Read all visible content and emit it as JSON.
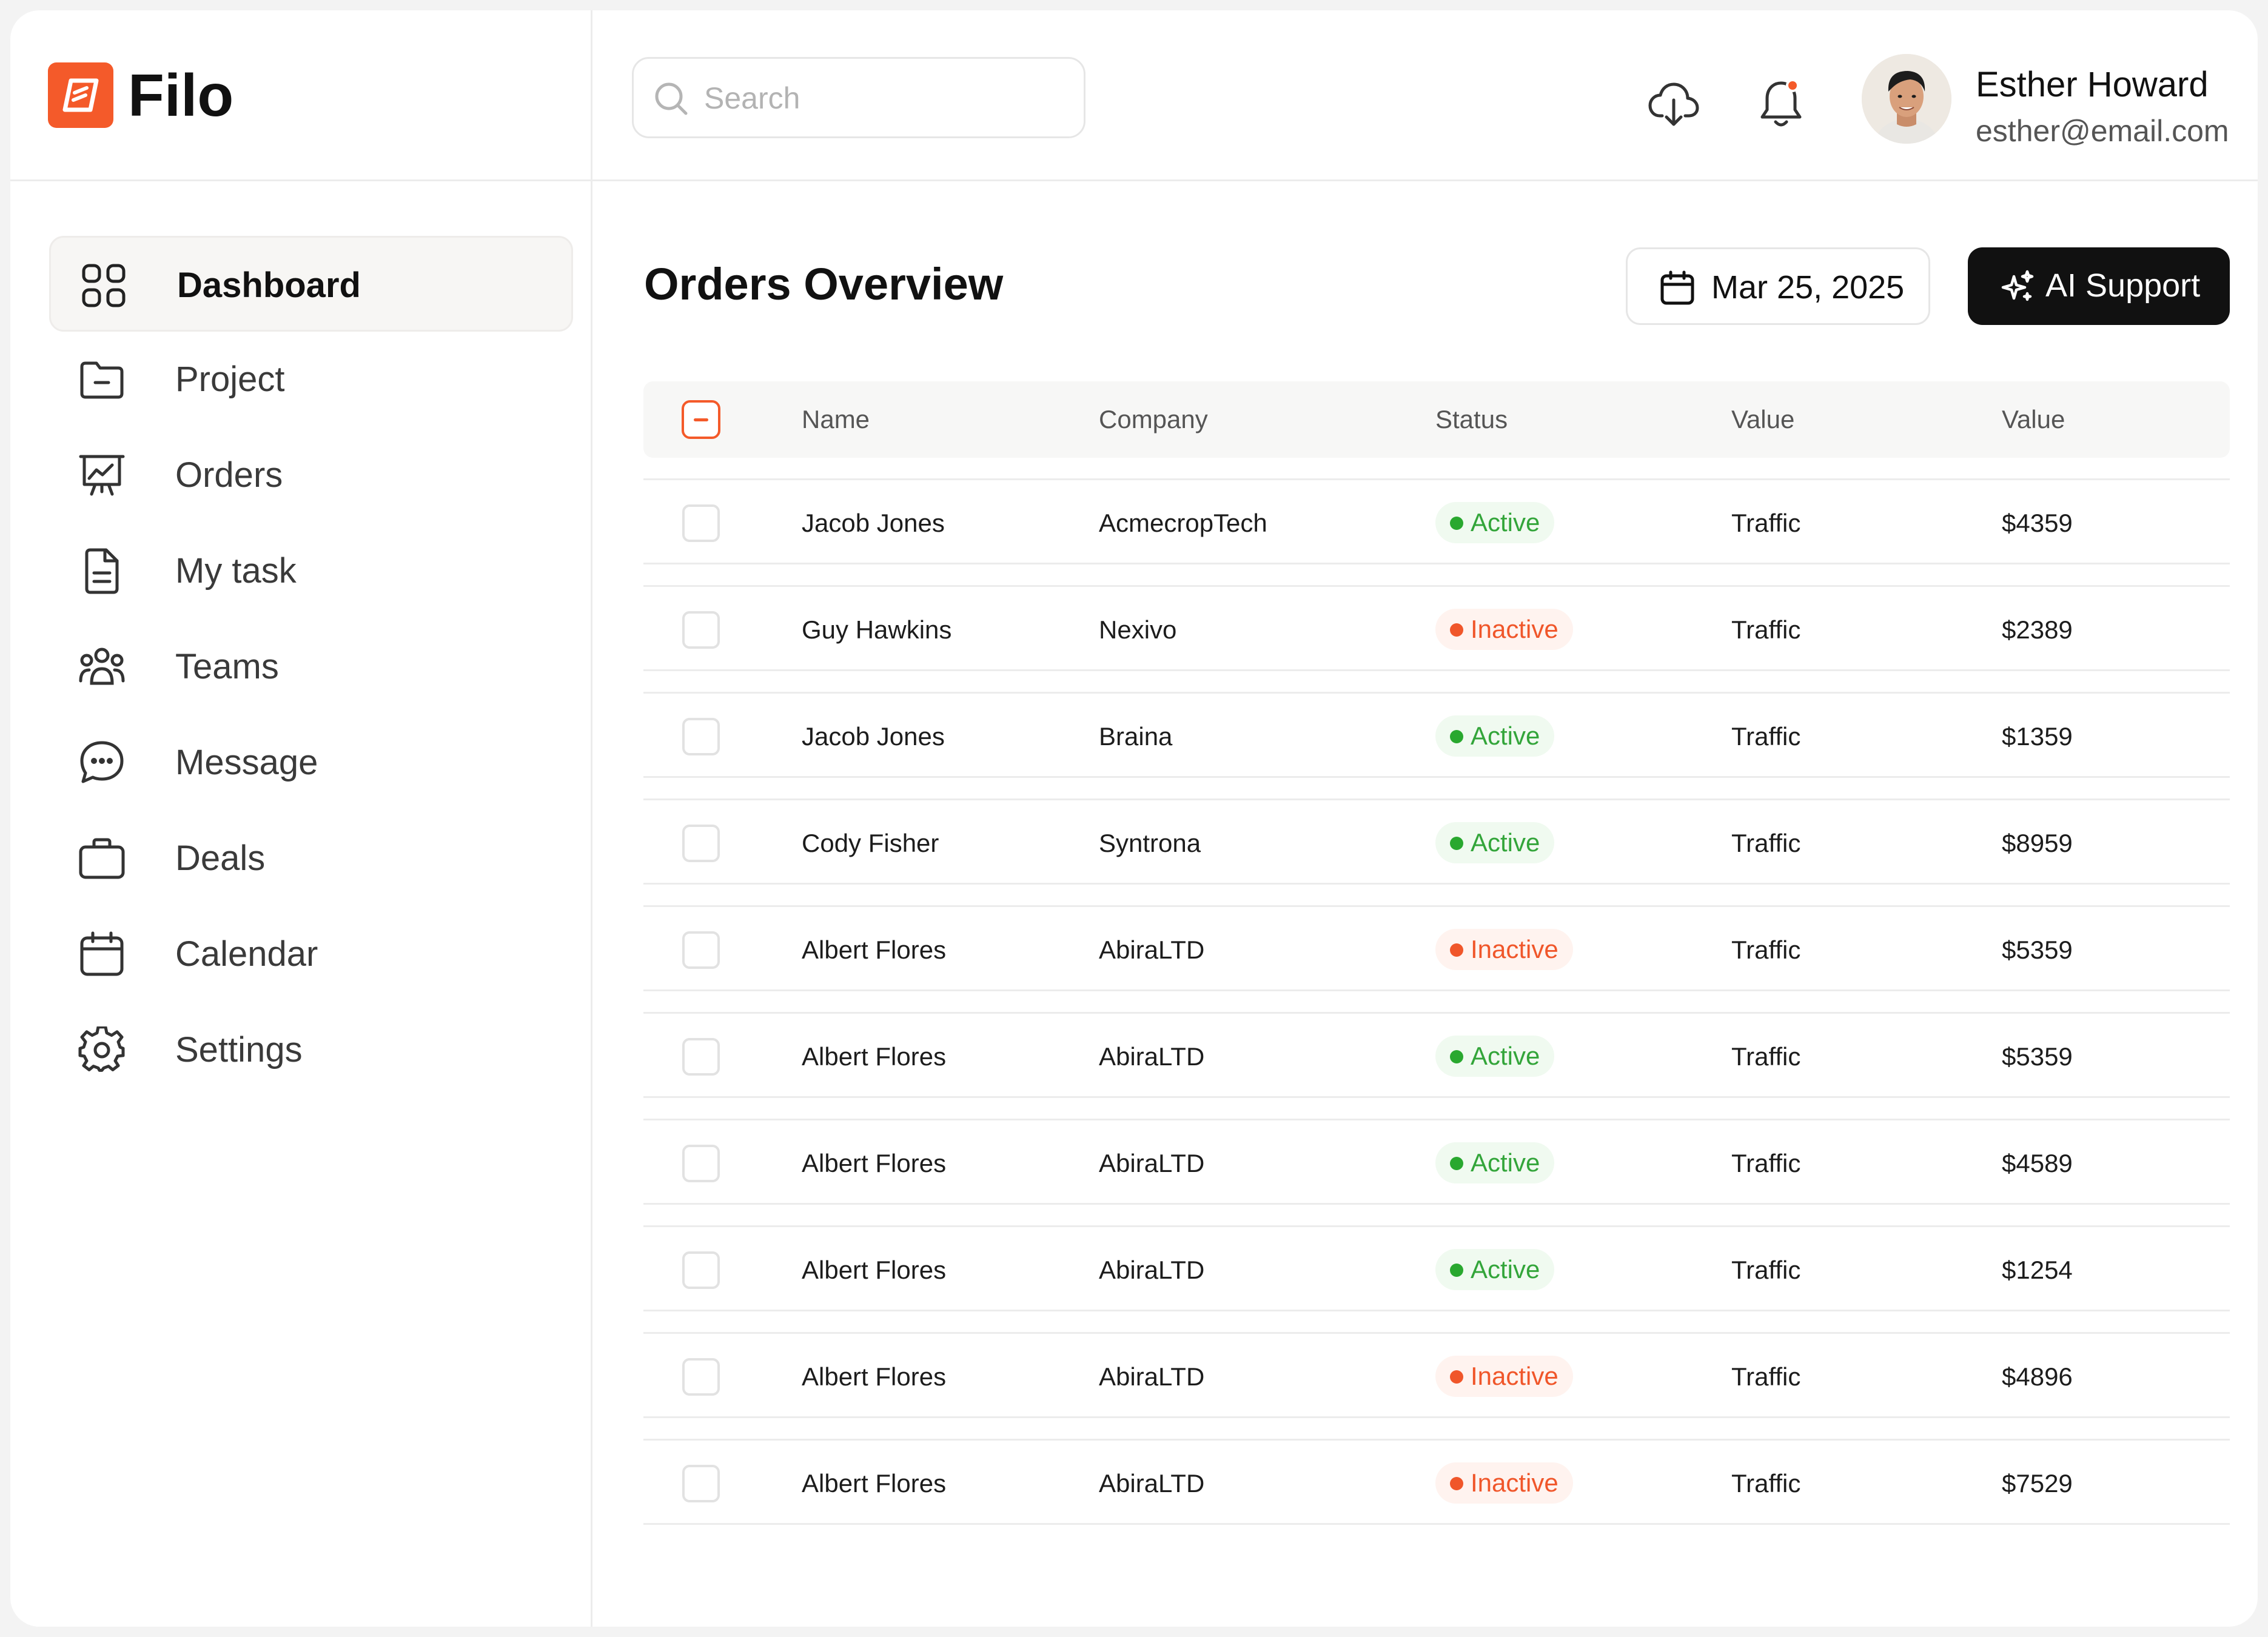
{
  "app": {
    "brand_name": "Filo",
    "brand_color": "#f45a2a"
  },
  "sidebar": {
    "items": [
      {
        "label": "Dashboard",
        "icon": "dashboard-grid-icon",
        "active": true
      },
      {
        "label": "Project",
        "icon": "folder-icon",
        "active": false
      },
      {
        "label": "Orders",
        "icon": "presentation-chart-icon",
        "active": false
      },
      {
        "label": "My task",
        "icon": "document-icon",
        "active": false
      },
      {
        "label": "Teams",
        "icon": "users-icon",
        "active": false
      },
      {
        "label": "Message",
        "icon": "chat-bubble-icon",
        "active": false
      },
      {
        "label": "Deals",
        "icon": "briefcase-icon",
        "active": false
      },
      {
        "label": "Calendar",
        "icon": "calendar-icon",
        "active": false
      },
      {
        "label": "Settings",
        "icon": "gear-icon",
        "active": false
      }
    ]
  },
  "header": {
    "search": {
      "placeholder": "Search",
      "value": ""
    },
    "download_icon": "cloud-download-icon",
    "notification_icon": "bell-icon",
    "notification_dot_color": "#f45a2a",
    "user": {
      "name": "Esther Howard",
      "email": "esther@email.com"
    }
  },
  "main": {
    "title": "Orders Overview",
    "date_button": {
      "label": "Mar 25, 2025",
      "icon": "calendar-icon"
    },
    "ai_button": {
      "label": "AI Support",
      "icon": "sparkle-icon"
    },
    "table": {
      "columns": [
        "Name",
        "Company",
        "Status",
        "Value",
        "Value"
      ],
      "header_checkbox_state": "indeterminate",
      "rows": [
        {
          "name": "Jacob Jones",
          "company": "AcmecropTech",
          "status": "Active",
          "type": "Traffic",
          "value": "$4359"
        },
        {
          "name": "Guy Hawkins",
          "company": "Nexivo",
          "status": "Inactive",
          "type": "Traffic",
          "value": "$2389"
        },
        {
          "name": "Jacob Jones",
          "company": "Braina",
          "status": "Active",
          "type": "Traffic",
          "value": "$1359"
        },
        {
          "name": "Cody Fisher",
          "company": "Syntrona",
          "status": "Active",
          "type": "Traffic",
          "value": "$8959"
        },
        {
          "name": "Albert Flores",
          "company": "AbiraLTD",
          "status": "Inactive",
          "type": "Traffic",
          "value": "$5359"
        },
        {
          "name": "Albert Flores",
          "company": "AbiraLTD",
          "status": "Active",
          "type": "Traffic",
          "value": "$5359"
        },
        {
          "name": "Albert Flores",
          "company": "AbiraLTD",
          "status": "Active",
          "type": "Traffic",
          "value": "$4589"
        },
        {
          "name": "Albert Flores",
          "company": "AbiraLTD",
          "status": "Active",
          "type": "Traffic",
          "value": "$1254"
        },
        {
          "name": "Albert Flores",
          "company": "AbiraLTD",
          "status": "Inactive",
          "type": "Traffic",
          "value": "$4896"
        },
        {
          "name": "Albert Flores",
          "company": "AbiraLTD",
          "status": "Inactive",
          "type": "Traffic",
          "value": "$7529"
        }
      ]
    }
  }
}
